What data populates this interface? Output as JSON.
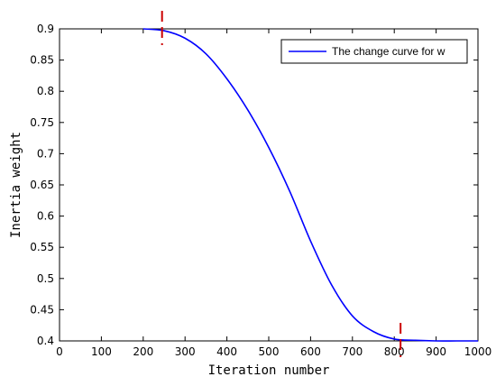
{
  "chart_data": {
    "type": "line",
    "title": "",
    "xlabel": "Iteration number",
    "ylabel": "Inertia weight",
    "xlim": [
      0,
      1000
    ],
    "ylim": [
      0.4,
      0.9
    ],
    "xticks": [
      0,
      100,
      200,
      300,
      400,
      500,
      600,
      700,
      800,
      900,
      1000
    ],
    "xtick_labels": [
      "0",
      "100",
      "200",
      "300",
      "400",
      "500",
      "600",
      "700",
      "800",
      "900",
      "1000"
    ],
    "yticks": [
      0.4,
      0.45,
      0.5,
      0.55,
      0.6,
      0.65,
      0.7,
      0.75,
      0.8,
      0.85,
      0.9
    ],
    "ytick_labels": [
      "0.4",
      "0.45",
      "0.5",
      "0.55",
      "0.6",
      "0.65",
      "0.7",
      "0.75",
      "0.8",
      "0.85",
      "0.9"
    ],
    "grid": false,
    "legend_position": "top-right",
    "series": [
      {
        "name": "The change curve for w",
        "color": "#0000ff",
        "x": [
          200,
          250,
          300,
          350,
          400,
          450,
          500,
          550,
          600,
          650,
          700,
          750,
          800,
          850,
          900,
          950,
          1000
        ],
        "y": [
          0.9,
          0.897,
          0.885,
          0.86,
          0.82,
          0.77,
          0.71,
          0.64,
          0.56,
          0.49,
          0.44,
          0.415,
          0.403,
          0.401,
          0.4,
          0.4,
          0.4
        ]
      }
    ],
    "markers": [
      {
        "x": 245,
        "y": 0.9,
        "color": "#cc0000",
        "style": "dashed-vertical"
      },
      {
        "x": 815,
        "y": 0.4,
        "color": "#cc0000",
        "style": "dashed-vertical"
      }
    ]
  }
}
